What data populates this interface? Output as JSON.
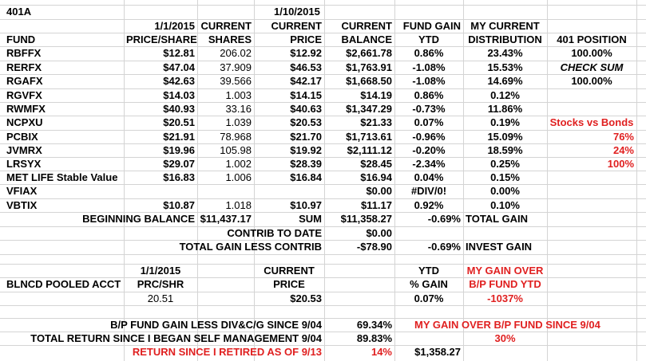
{
  "sheet_title": "401A",
  "headers": {
    "date_1": "1/1/2015",
    "price_share": "PRICE/SHARE",
    "current_1": "CURRENT",
    "shares": "SHARES",
    "date_2": "1/10/2015",
    "current_2": "CURRENT",
    "price": "PRICE",
    "current_3": "CURRENT",
    "balance": "BALANCE",
    "fund_gain": "FUND GAIN",
    "ytd": "YTD",
    "my_current": "MY CURRENT",
    "distribution": "DISTRIBUTION",
    "fund": "FUND",
    "position_401": "401 POSITION"
  },
  "funds": [
    {
      "fund": "RBFFX",
      "price_share": "$12.81",
      "shares": "206.02",
      "price": "$12.92",
      "balance": "$2,661.78",
      "ytd": "0.86%",
      "distribution": "23.43%"
    },
    {
      "fund": "RERFX",
      "price_share": "$47.04",
      "shares": "37.909",
      "price": "$46.53",
      "balance": "$1,763.91",
      "ytd": "-1.08%",
      "distribution": "15.53%"
    },
    {
      "fund": "RGAFX",
      "price_share": "$42.63",
      "shares": "39.566",
      "price": "$42.17",
      "balance": "$1,668.50",
      "ytd": "-1.08%",
      "distribution": "14.69%"
    },
    {
      "fund": "RGVFX",
      "price_share": "$14.03",
      "shares": "1.003",
      "price": "$14.15",
      "balance": "$14.19",
      "ytd": "0.86%",
      "distribution": "0.12%"
    },
    {
      "fund": "RWMFX",
      "price_share": "$40.93",
      "shares": "33.16",
      "price": "$40.63",
      "balance": "$1,347.29",
      "ytd": "-0.73%",
      "distribution": "11.86%"
    },
    {
      "fund": "NCPXU",
      "price_share": "$20.51",
      "shares": "1.039",
      "price": "$20.53",
      "balance": "$21.33",
      "ytd": "0.07%",
      "distribution": "0.19%"
    },
    {
      "fund": "PCBIX",
      "price_share": "$21.91",
      "shares": "78.968",
      "price": "$21.70",
      "balance": "$1,713.61",
      "ytd": "-0.96%",
      "distribution": "15.09%"
    },
    {
      "fund": "JVMRX",
      "price_share": "$19.96",
      "shares": "105.98",
      "price": "$19.92",
      "balance": "$2,111.12",
      "ytd": "-0.20%",
      "distribution": "18.59%"
    },
    {
      "fund": "LRSYX",
      "price_share": "$29.07",
      "shares": "1.002",
      "price": "$28.39",
      "balance": "$28.45",
      "ytd": "-2.34%",
      "distribution": "0.25%"
    },
    {
      "fund": "MET LIFE Stable Value",
      "price_share": "$16.83",
      "shares": "1.006",
      "price": "$16.84",
      "balance": "$16.94",
      "ytd": "0.04%",
      "distribution": "0.15%"
    },
    {
      "fund": "VFIAX",
      "price_share": "",
      "shares": "",
      "price": "",
      "balance": "$0.00",
      "ytd": "#DIV/0!",
      "distribution": "0.00%"
    },
    {
      "fund": "VBTIX",
      "price_share": "$10.87",
      "shares": "1.018",
      "price": "$10.97",
      "balance": "$11.17",
      "ytd": "0.92%",
      "distribution": "0.10%"
    }
  ],
  "side_panel": {
    "position_value": "100.00%",
    "check_sum_label": "CHECK SUM",
    "check_sum_value": "100.00%",
    "stocks_vs_bonds_label": "Stocks vs Bonds",
    "stocks_pct": "76%",
    "bonds_pct": "24%",
    "total_pct": "100%"
  },
  "summary": {
    "beginning_balance_label": "BEGINNING BALANCE",
    "beginning_balance_value": "$11,437.17",
    "sum_label": "SUM",
    "sum_value": "$11,358.27",
    "total_gain_pct": "-0.69%",
    "total_gain_label": "TOTAL GAIN",
    "contrib_label": "CONTRIB TO DATE",
    "contrib_value": "$0.00",
    "total_less_contrib_label": "TOTAL GAIN LESS CONTRIB",
    "total_less_contrib_value": "-$78.90",
    "invest_gain_pct": "-0.69%",
    "invest_gain_label": "INVEST GAIN"
  },
  "pooled": {
    "date": "1/1/2015",
    "current": "CURRENT",
    "ytd": "YTD",
    "my_gain_over": "MY GAIN OVER",
    "label": "BLNCD POOLED ACCT",
    "prc_shr": "PRC/SHR",
    "price": "PRICE",
    "pct_gain": "% GAIN",
    "bp_fund_ytd": "B/P FUND YTD",
    "prc_value": "20.51",
    "price_value": "$20.53",
    "gain_value": "0.07%",
    "my_gain_value": "-1037%"
  },
  "footer": {
    "bp_since_label": "B/P FUND GAIN LESS DIV&C/G SINCE 9/04",
    "bp_since_value": "69.34%",
    "my_gain_since_label": "MY GAIN OVER  B/P FUND  SINCE 9/04",
    "total_return_label": "TOTAL RETURN SINCE I BEGAN SELF MANAGEMENT 9/04",
    "total_return_value": "89.83%",
    "my_gain_since_value": "30%",
    "retired_label": "RETURN SINCE I RETIRED AS OF 9/13",
    "retired_pct": "14%",
    "retired_value": "$1,358.27"
  }
}
